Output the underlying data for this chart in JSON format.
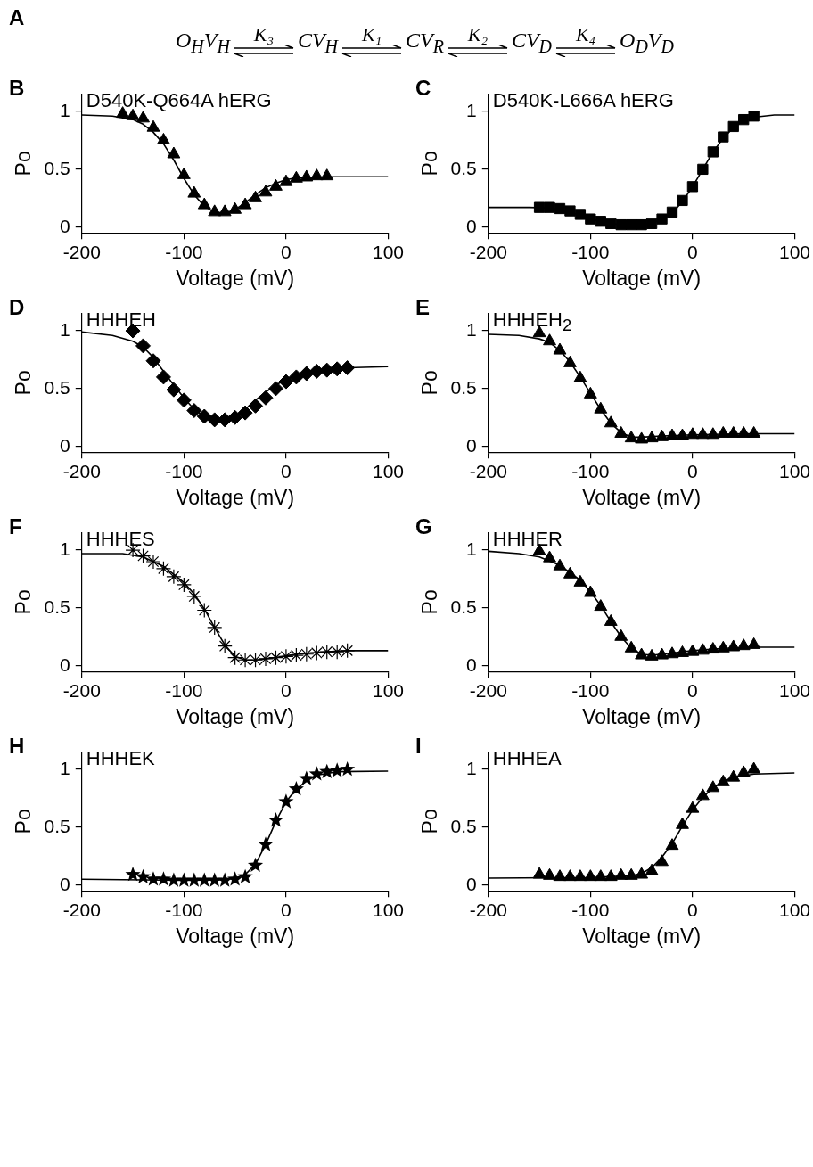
{
  "chart_data": [
    {
      "type": "other",
      "title": "A",
      "annotations": [
        "O$_{H}$V$_{H}$",
        "K₃",
        "CV$_{H}$",
        "K₁",
        "CV$_{R}$",
        "K₂",
        "CV$_{D}$",
        "K₄",
        "O$_{D}$V$_{D}$"
      ]
    },
    {
      "type": "scatter",
      "title": "B",
      "subtitle": "D540K-Q664A hERG",
      "xlabel": "Voltage (mV)",
      "ylabel": "Po",
      "xlim": [
        -200,
        100
      ],
      "xticks": [
        -200,
        -100,
        0,
        100
      ],
      "ylim": [
        -0.05,
        1.15
      ],
      "yticks": [
        0,
        0.5,
        1
      ],
      "grid": false,
      "legend": false,
      "marker": "triangle",
      "series": [
        {
          "color": "#000000",
          "x": [
            -160,
            -150,
            -140,
            -130,
            -120,
            -110,
            -100,
            -90,
            -80,
            -70,
            -60,
            -50,
            -40,
            -30,
            -20,
            -10,
            0,
            10,
            20,
            30,
            40
          ],
          "values": [
            0.98,
            0.96,
            0.94,
            0.86,
            0.75,
            0.63,
            0.45,
            0.29,
            0.19,
            0.13,
            0.13,
            0.15,
            0.19,
            0.25,
            0.3,
            0.35,
            0.39,
            0.42,
            0.43,
            0.44,
            0.44
          ]
        },
        {
          "type": "line",
          "marker": "none",
          "color": "#000000",
          "x": [
            -200,
            -170,
            -150,
            -140,
            -130,
            -120,
            -110,
            -100,
            -90,
            -80,
            -70,
            -60,
            -50,
            -40,
            -30,
            -20,
            -10,
            0,
            10,
            20,
            40,
            100
          ],
          "values": [
            0.97,
            0.96,
            0.93,
            0.89,
            0.82,
            0.72,
            0.58,
            0.42,
            0.28,
            0.18,
            0.13,
            0.12,
            0.15,
            0.21,
            0.28,
            0.34,
            0.38,
            0.41,
            0.425,
            0.43,
            0.435,
            0.435
          ]
        }
      ]
    },
    {
      "type": "scatter",
      "title": "C",
      "subtitle": "D540K-L666A hERG",
      "xlabel": "Voltage (mV)",
      "ylabel": "Po",
      "xlim": [
        -200,
        100
      ],
      "xticks": [
        -200,
        -100,
        0,
        100
      ],
      "ylim": [
        -0.05,
        1.15
      ],
      "yticks": [
        0,
        0.5,
        1
      ],
      "grid": false,
      "legend": false,
      "marker": "square",
      "series": [
        {
          "color": "#000000",
          "x": [
            -150,
            -140,
            -130,
            -120,
            -110,
            -100,
            -90,
            -80,
            -70,
            -60,
            -50,
            -40,
            -30,
            -20,
            -10,
            0,
            10,
            20,
            30,
            40,
            50,
            60
          ],
          "values": [
            0.17,
            0.17,
            0.16,
            0.14,
            0.11,
            0.07,
            0.05,
            0.03,
            0.02,
            0.02,
            0.02,
            0.03,
            0.07,
            0.13,
            0.23,
            0.35,
            0.5,
            0.65,
            0.78,
            0.87,
            0.93,
            0.96
          ]
        },
        {
          "type": "line",
          "marker": "none",
          "color": "#000000",
          "x": [
            -200,
            -160,
            -140,
            -120,
            -100,
            -80,
            -60,
            -40,
            -20,
            -10,
            0,
            10,
            20,
            30,
            40,
            50,
            60,
            80,
            100
          ],
          "values": [
            0.17,
            0.17,
            0.165,
            0.13,
            0.07,
            0.03,
            0.015,
            0.03,
            0.12,
            0.22,
            0.35,
            0.5,
            0.65,
            0.77,
            0.86,
            0.92,
            0.95,
            0.97,
            0.97
          ]
        }
      ]
    },
    {
      "type": "scatter",
      "title": "D",
      "subtitle": "HHHEH",
      "xlabel": "Voltage (mV)",
      "ylabel": "Po",
      "xlim": [
        -200,
        100
      ],
      "xticks": [
        -200,
        -100,
        0,
        100
      ],
      "ylim": [
        -0.05,
        1.15
      ],
      "yticks": [
        0,
        0.5,
        1
      ],
      "grid": false,
      "legend": false,
      "marker": "diamond",
      "series": [
        {
          "color": "#000000",
          "x": [
            -150,
            -140,
            -130,
            -120,
            -110,
            -100,
            -90,
            -80,
            -70,
            -60,
            -50,
            -40,
            -30,
            -20,
            -10,
            0,
            10,
            20,
            30,
            40,
            50,
            60
          ],
          "values": [
            1.0,
            0.87,
            0.74,
            0.6,
            0.49,
            0.4,
            0.31,
            0.26,
            0.23,
            0.23,
            0.25,
            0.29,
            0.35,
            0.42,
            0.5,
            0.56,
            0.6,
            0.63,
            0.65,
            0.66,
            0.67,
            0.68
          ]
        },
        {
          "type": "line",
          "marker": "none",
          "color": "#000000",
          "x": [
            -200,
            -170,
            -150,
            -140,
            -130,
            -120,
            -110,
            -100,
            -90,
            -80,
            -70,
            -60,
            -50,
            -40,
            -30,
            -20,
            -10,
            0,
            10,
            20,
            40,
            60,
            100
          ],
          "values": [
            0.99,
            0.96,
            0.91,
            0.86,
            0.77,
            0.65,
            0.53,
            0.42,
            0.32,
            0.26,
            0.23,
            0.23,
            0.26,
            0.32,
            0.4,
            0.47,
            0.53,
            0.58,
            0.61,
            0.63,
            0.66,
            0.68,
            0.69
          ]
        }
      ]
    },
    {
      "type": "scatter",
      "title": "E",
      "subtitle": "HHHEH$_{2}$",
      "xlabel": "Voltage (mV)",
      "ylabel": "Po",
      "xlim": [
        -200,
        100
      ],
      "xticks": [
        -200,
        -100,
        0,
        100
      ],
      "ylim": [
        -0.05,
        1.15
      ],
      "yticks": [
        0,
        0.5,
        1
      ],
      "grid": false,
      "legend": false,
      "marker": "triangle",
      "series": [
        {
          "color": "#000000",
          "x": [
            -150,
            -140,
            -130,
            -120,
            -110,
            -100,
            -90,
            -80,
            -70,
            -60,
            -50,
            -40,
            -30,
            -20,
            -10,
            0,
            10,
            20,
            30,
            40,
            50,
            60
          ],
          "values": [
            0.98,
            0.91,
            0.83,
            0.72,
            0.59,
            0.45,
            0.32,
            0.2,
            0.11,
            0.07,
            0.06,
            0.07,
            0.08,
            0.09,
            0.09,
            0.1,
            0.1,
            0.1,
            0.11,
            0.11,
            0.11,
            0.11
          ]
        },
        {
          "type": "line",
          "marker": "none",
          "color": "#000000",
          "x": [
            -200,
            -170,
            -150,
            -140,
            -130,
            -120,
            -110,
            -100,
            -90,
            -80,
            -70,
            -60,
            -50,
            -30,
            0,
            50,
            100
          ],
          "values": [
            0.97,
            0.96,
            0.93,
            0.9,
            0.83,
            0.73,
            0.6,
            0.46,
            0.32,
            0.2,
            0.12,
            0.08,
            0.08,
            0.09,
            0.1,
            0.11,
            0.11
          ]
        }
      ]
    },
    {
      "type": "scatter",
      "title": "F",
      "subtitle": "HHHES",
      "xlabel": "Voltage (mV)",
      "ylabel": "Po",
      "xlim": [
        -200,
        100
      ],
      "xticks": [
        -200,
        -100,
        0,
        100
      ],
      "ylim": [
        -0.05,
        1.15
      ],
      "yticks": [
        0,
        0.5,
        1
      ],
      "grid": false,
      "legend": false,
      "marker": "cross",
      "series": [
        {
          "color": "#000000",
          "x": [
            -150,
            -140,
            -130,
            -120,
            -110,
            -100,
            -90,
            -80,
            -70,
            -60,
            -50,
            -40,
            -30,
            -20,
            -10,
            0,
            10,
            20,
            30,
            40,
            50,
            60
          ],
          "values": [
            1.0,
            0.95,
            0.9,
            0.84,
            0.77,
            0.7,
            0.6,
            0.48,
            0.33,
            0.17,
            0.07,
            0.05,
            0.05,
            0.06,
            0.07,
            0.08,
            0.09,
            0.1,
            0.11,
            0.12,
            0.12,
            0.13
          ]
        },
        {
          "type": "line",
          "marker": "none",
          "color": "#000000",
          "x": [
            -200,
            -160,
            -140,
            -120,
            -100,
            -90,
            -80,
            -70,
            -60,
            -50,
            -40,
            -30,
            -10,
            10,
            40,
            60,
            100
          ],
          "values": [
            0.97,
            0.97,
            0.94,
            0.86,
            0.72,
            0.62,
            0.49,
            0.33,
            0.18,
            0.08,
            0.05,
            0.05,
            0.07,
            0.1,
            0.12,
            0.13,
            0.13
          ]
        }
      ]
    },
    {
      "type": "scatter",
      "title": "G",
      "subtitle": "HHHER",
      "xlabel": "Voltage (mV)",
      "ylabel": "Po",
      "xlim": [
        -200,
        100
      ],
      "xticks": [
        -200,
        -100,
        0,
        100
      ],
      "ylim": [
        -0.05,
        1.15
      ],
      "yticks": [
        0,
        0.5,
        1
      ],
      "grid": false,
      "legend": false,
      "marker": "triangle",
      "series": [
        {
          "color": "#000000",
          "x": [
            -150,
            -140,
            -130,
            -120,
            -110,
            -100,
            -90,
            -80,
            -70,
            -60,
            -50,
            -40,
            -30,
            -20,
            -10,
            0,
            10,
            20,
            30,
            40,
            50,
            60
          ],
          "values": [
            0.99,
            0.93,
            0.86,
            0.79,
            0.72,
            0.63,
            0.51,
            0.38,
            0.25,
            0.15,
            0.09,
            0.08,
            0.09,
            0.1,
            0.11,
            0.12,
            0.13,
            0.14,
            0.15,
            0.16,
            0.17,
            0.18
          ]
        },
        {
          "type": "line",
          "marker": "none",
          "color": "#000000",
          "x": [
            -200,
            -170,
            -150,
            -130,
            -110,
            -100,
            -90,
            -80,
            -70,
            -60,
            -50,
            -40,
            -20,
            0,
            30,
            60,
            100
          ],
          "values": [
            0.99,
            0.97,
            0.94,
            0.87,
            0.74,
            0.64,
            0.52,
            0.38,
            0.25,
            0.15,
            0.1,
            0.09,
            0.11,
            0.13,
            0.15,
            0.16,
            0.16
          ]
        }
      ]
    },
    {
      "type": "scatter",
      "title": "H",
      "subtitle": "HHHEK",
      "xlabel": "Voltage (mV)",
      "ylabel": "Po",
      "xlim": [
        -200,
        100
      ],
      "xticks": [
        -200,
        -100,
        0,
        100
      ],
      "ylim": [
        -0.05,
        1.15
      ],
      "yticks": [
        0,
        0.5,
        1
      ],
      "grid": false,
      "legend": false,
      "marker": "star",
      "series": [
        {
          "color": "#000000",
          "x": [
            -150,
            -140,
            -130,
            -120,
            -110,
            -100,
            -90,
            -80,
            -70,
            -60,
            -50,
            -40,
            -30,
            -20,
            -10,
            0,
            10,
            20,
            30,
            40,
            50,
            60
          ],
          "values": [
            0.09,
            0.07,
            0.05,
            0.05,
            0.04,
            0.04,
            0.04,
            0.04,
            0.04,
            0.04,
            0.05,
            0.07,
            0.17,
            0.35,
            0.56,
            0.72,
            0.83,
            0.92,
            0.96,
            0.98,
            0.99,
            1.0
          ]
        },
        {
          "type": "line",
          "marker": "none",
          "color": "#000000",
          "x": [
            -200,
            -100,
            -60,
            -50,
            -40,
            -30,
            -20,
            -10,
            0,
            10,
            20,
            30,
            50,
            100
          ],
          "values": [
            0.05,
            0.04,
            0.045,
            0.06,
            0.09,
            0.18,
            0.35,
            0.55,
            0.72,
            0.83,
            0.9,
            0.95,
            0.98,
            0.985
          ]
        }
      ]
    },
    {
      "type": "scatter",
      "title": "I",
      "subtitle": "HHHEA",
      "xlabel": "Voltage (mV)",
      "ylabel": "Po",
      "xlim": [
        -200,
        100
      ],
      "xticks": [
        -200,
        -100,
        0,
        100
      ],
      "ylim": [
        -0.05,
        1.15
      ],
      "yticks": [
        0,
        0.5,
        1
      ],
      "grid": false,
      "legend": false,
      "marker": "triangle",
      "series": [
        {
          "color": "#000000",
          "x": [
            -150,
            -140,
            -130,
            -120,
            -110,
            -100,
            -90,
            -80,
            -70,
            -60,
            -50,
            -40,
            -30,
            -20,
            -10,
            0,
            10,
            20,
            30,
            40,
            50,
            60
          ],
          "values": [
            0.09,
            0.08,
            0.07,
            0.07,
            0.07,
            0.07,
            0.07,
            0.07,
            0.08,
            0.08,
            0.09,
            0.12,
            0.2,
            0.34,
            0.52,
            0.66,
            0.77,
            0.84,
            0.89,
            0.93,
            0.97,
            1.0
          ]
        },
        {
          "type": "line",
          "marker": "none",
          "color": "#000000",
          "x": [
            -200,
            -100,
            -60,
            -50,
            -40,
            -30,
            -20,
            -10,
            0,
            10,
            20,
            30,
            40,
            60,
            100
          ],
          "values": [
            0.06,
            0.065,
            0.08,
            0.1,
            0.15,
            0.24,
            0.36,
            0.51,
            0.65,
            0.76,
            0.84,
            0.9,
            0.93,
            0.96,
            0.97
          ]
        }
      ]
    }
  ]
}
